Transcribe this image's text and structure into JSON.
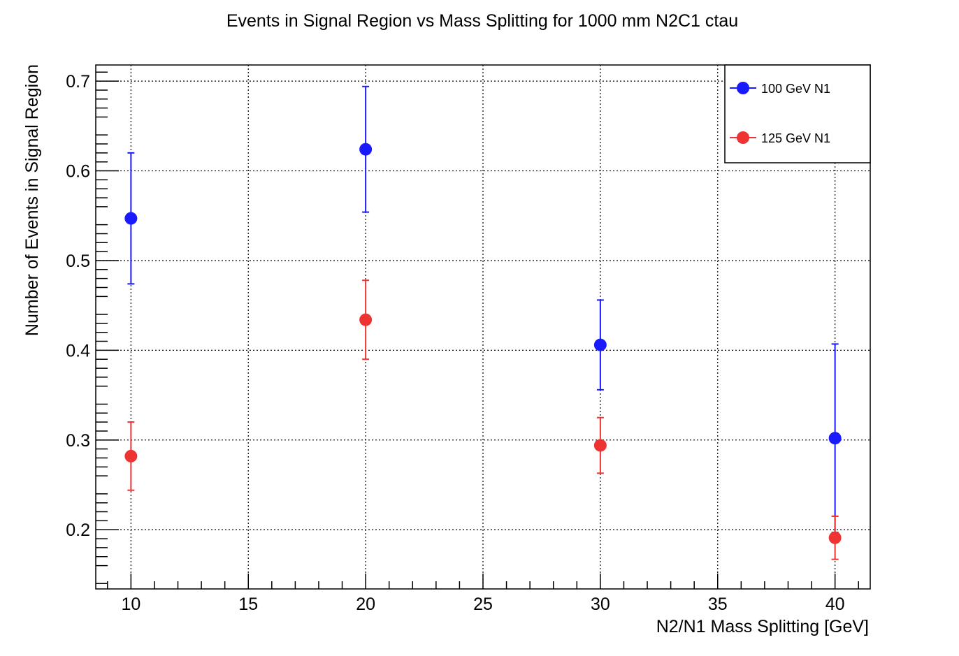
{
  "chart_data": {
    "type": "scatter",
    "title": "Events in Signal Region vs Mass Splitting for 1000 mm N2C1 ctau",
    "xlabel": "N2/N1 Mass Splitting [GeV]",
    "ylabel": "Number of Events in Signal Region",
    "xlim": [
      8.5,
      41.5
    ],
    "ylim": [
      0.134,
      0.718
    ],
    "x_ticks": [
      10,
      15,
      20,
      25,
      30,
      35,
      40
    ],
    "y_ticks": [
      0.2,
      0.3,
      0.4,
      0.5,
      0.6,
      0.7
    ],
    "x_tick_labels": [
      "10",
      "15",
      "20",
      "25",
      "30",
      "35",
      "40"
    ],
    "y_tick_labels": [
      "0.2",
      "0.3",
      "0.4",
      "0.5",
      "0.6",
      "0.7"
    ],
    "grid": true,
    "legend_position": "top-right",
    "series": [
      {
        "name": "100 GeV N1",
        "color": "#1a1aff",
        "x": [
          10,
          20,
          30,
          40
        ],
        "y": [
          0.547,
          0.624,
          0.406,
          0.302
        ],
        "err": [
          0.073,
          0.07,
          0.05,
          0.105
        ]
      },
      {
        "name": "125 GeV N1",
        "color": "#ee3333",
        "x": [
          10,
          20,
          30,
          40
        ],
        "y": [
          0.282,
          0.434,
          0.294,
          0.191
        ],
        "err": [
          0.038,
          0.044,
          0.031,
          0.024
        ]
      }
    ]
  }
}
